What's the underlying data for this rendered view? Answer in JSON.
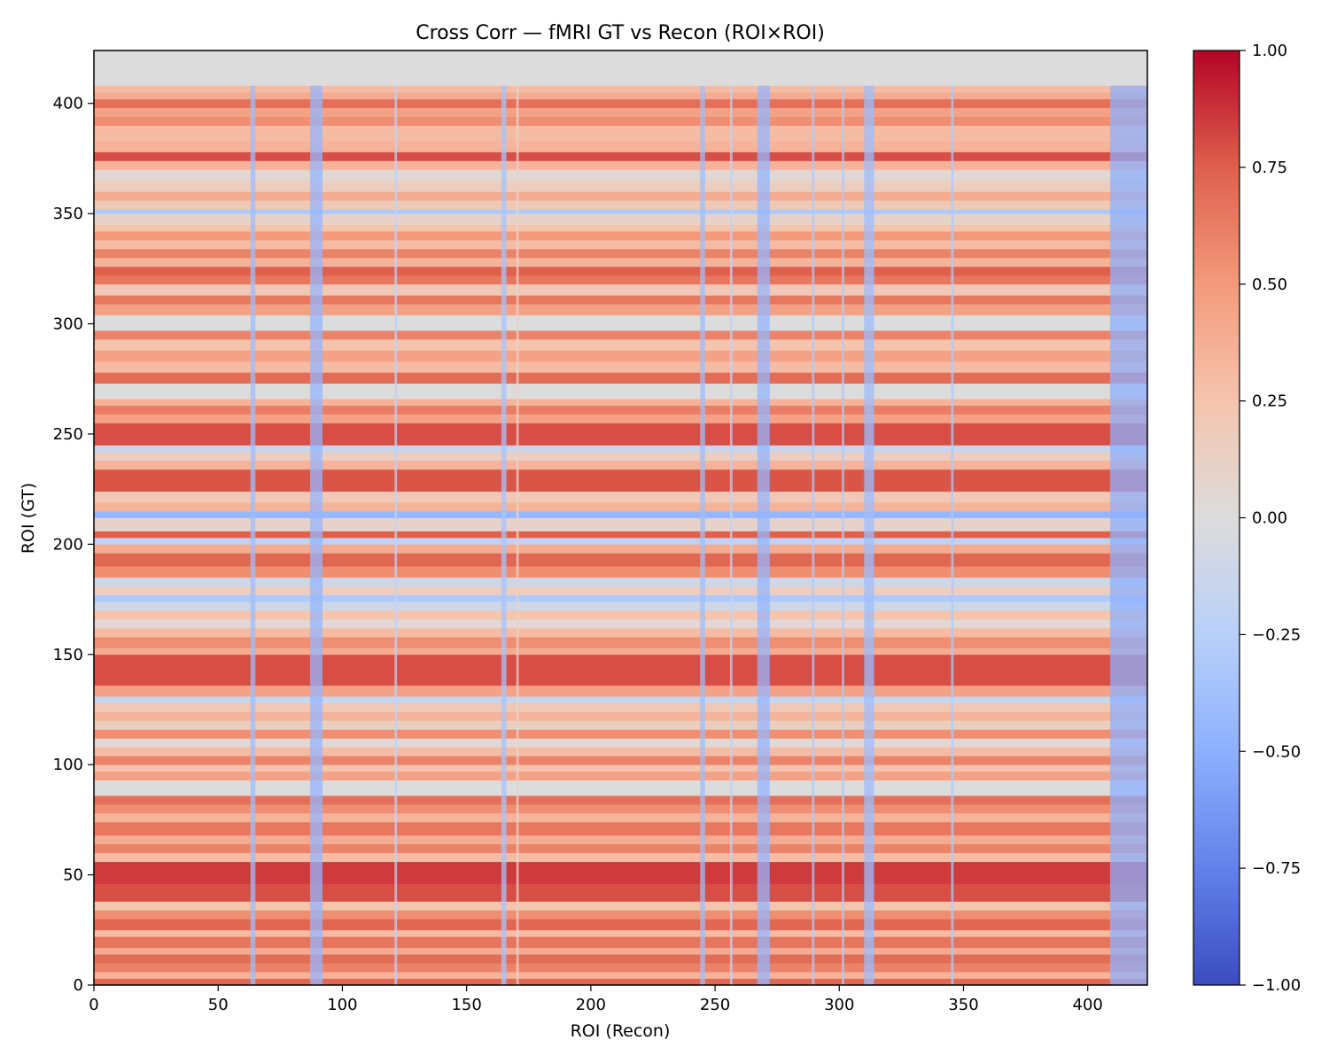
{
  "chart_data": {
    "type": "heatmap",
    "title": "Cross Corr — fMRI GT vs Recon (ROI×ROI)",
    "xlabel": "ROI (Recon)",
    "ylabel": "ROI (GT)",
    "xlim": [
      0,
      424
    ],
    "ylim": [
      0,
      424
    ],
    "xticks": [
      0,
      50,
      100,
      150,
      200,
      250,
      300,
      350,
      400
    ],
    "yticks": [
      0,
      50,
      100,
      150,
      200,
      250,
      300,
      350,
      400
    ],
    "colormap": "coolwarm",
    "color_range": [
      -1.0,
      1.0
    ],
    "colorbar_ticks": [
      "1.00",
      "0.75",
      "0.50",
      "0.25",
      "0.00",
      "−0.25",
      "−0.50",
      "−0.75",
      "−1.00"
    ],
    "colorbar_tick_values": [
      1.0,
      0.75,
      0.5,
      0.25,
      0.0,
      -0.25,
      -0.5,
      -0.75,
      -1.0
    ],
    "grid": false,
    "empty_rows_from": 408,
    "row_bands": [
      {
        "from": 0,
        "to": 3,
        "value": 0.72
      },
      {
        "from": 3,
        "to": 6,
        "value": 0.35
      },
      {
        "from": 6,
        "to": 10,
        "value": 0.6
      },
      {
        "from": 10,
        "to": 14,
        "value": 0.7
      },
      {
        "from": 14,
        "to": 17,
        "value": 0.4
      },
      {
        "from": 17,
        "to": 22,
        "value": 0.66
      },
      {
        "from": 22,
        "to": 25,
        "value": 0.3
      },
      {
        "from": 25,
        "to": 30,
        "value": 0.72
      },
      {
        "from": 30,
        "to": 34,
        "value": 0.55
      },
      {
        "from": 34,
        "to": 38,
        "value": 0.25
      },
      {
        "from": 38,
        "to": 46,
        "value": 0.8
      },
      {
        "from": 46,
        "to": 56,
        "value": 0.85
      },
      {
        "from": 56,
        "to": 60,
        "value": 0.3
      },
      {
        "from": 60,
        "to": 64,
        "value": 0.6
      },
      {
        "from": 64,
        "to": 68,
        "value": 0.4
      },
      {
        "from": 68,
        "to": 74,
        "value": 0.65
      },
      {
        "from": 74,
        "to": 78,
        "value": 0.35
      },
      {
        "from": 78,
        "to": 82,
        "value": 0.55
      },
      {
        "from": 82,
        "to": 86,
        "value": 0.68
      },
      {
        "from": 86,
        "to": 93,
        "value": 0.0
      },
      {
        "from": 93,
        "to": 97,
        "value": 0.45
      },
      {
        "from": 97,
        "to": 100,
        "value": 0.25
      },
      {
        "from": 100,
        "to": 104,
        "value": 0.6
      },
      {
        "from": 104,
        "to": 108,
        "value": 0.3
      },
      {
        "from": 108,
        "to": 112,
        "value": 0.05
      },
      {
        "from": 112,
        "to": 116,
        "value": 0.55
      },
      {
        "from": 116,
        "to": 120,
        "value": 0.15
      },
      {
        "from": 120,
        "to": 124,
        "value": 0.35
      },
      {
        "from": 124,
        "to": 128,
        "value": 0.2
      },
      {
        "from": 128,
        "to": 131,
        "value": -0.15
      },
      {
        "from": 131,
        "to": 136,
        "value": 0.45
      },
      {
        "from": 136,
        "to": 150,
        "value": 0.8
      },
      {
        "from": 150,
        "to": 153,
        "value": 0.4
      },
      {
        "from": 153,
        "to": 158,
        "value": 0.55
      },
      {
        "from": 158,
        "to": 162,
        "value": 0.3
      },
      {
        "from": 162,
        "to": 166,
        "value": 0.05
      },
      {
        "from": 166,
        "to": 170,
        "value": 0.25
      },
      {
        "from": 170,
        "to": 174,
        "value": -0.1
      },
      {
        "from": 174,
        "to": 177,
        "value": -0.3
      },
      {
        "from": 177,
        "to": 181,
        "value": 0.15
      },
      {
        "from": 181,
        "to": 185,
        "value": -0.1
      },
      {
        "from": 185,
        "to": 190,
        "value": 0.55
      },
      {
        "from": 190,
        "to": 196,
        "value": 0.72
      },
      {
        "from": 196,
        "to": 200,
        "value": 0.4
      },
      {
        "from": 200,
        "to": 203,
        "value": -0.2
      },
      {
        "from": 203,
        "to": 206,
        "value": 0.75
      },
      {
        "from": 206,
        "to": 212,
        "value": 0.1
      },
      {
        "from": 212,
        "to": 215,
        "value": -0.45
      },
      {
        "from": 215,
        "to": 219,
        "value": 0.35
      },
      {
        "from": 219,
        "to": 224,
        "value": 0.2
      },
      {
        "from": 224,
        "to": 234,
        "value": 0.78
      },
      {
        "from": 234,
        "to": 238,
        "value": 0.35
      },
      {
        "from": 238,
        "to": 242,
        "value": 0.15
      },
      {
        "from": 242,
        "to": 245,
        "value": -0.15
      },
      {
        "from": 245,
        "to": 255,
        "value": 0.8
      },
      {
        "from": 255,
        "to": 259,
        "value": 0.45
      },
      {
        "from": 259,
        "to": 263,
        "value": 0.62
      },
      {
        "from": 263,
        "to": 266,
        "value": 0.35
      },
      {
        "from": 266,
        "to": 273,
        "value": 0.0
      },
      {
        "from": 273,
        "to": 278,
        "value": 0.7
      },
      {
        "from": 278,
        "to": 283,
        "value": 0.3
      },
      {
        "from": 283,
        "to": 288,
        "value": 0.45
      },
      {
        "from": 288,
        "to": 293,
        "value": 0.25
      },
      {
        "from": 293,
        "to": 297,
        "value": 0.6
      },
      {
        "from": 297,
        "to": 304,
        "value": 0.0
      },
      {
        "from": 304,
        "to": 309,
        "value": 0.45
      },
      {
        "from": 309,
        "to": 313,
        "value": 0.65
      },
      {
        "from": 313,
        "to": 318,
        "value": 0.2
      },
      {
        "from": 318,
        "to": 322,
        "value": 0.65
      },
      {
        "from": 322,
        "to": 326,
        "value": 0.75
      },
      {
        "from": 326,
        "to": 330,
        "value": 0.35
      },
      {
        "from": 330,
        "to": 334,
        "value": 0.6
      },
      {
        "from": 334,
        "to": 338,
        "value": 0.3
      },
      {
        "from": 338,
        "to": 342,
        "value": 0.5
      },
      {
        "from": 342,
        "to": 345,
        "value": 0.25
      },
      {
        "from": 345,
        "to": 350,
        "value": 0.1
      },
      {
        "from": 350,
        "to": 352,
        "value": -0.3
      },
      {
        "from": 352,
        "to": 356,
        "value": 0.2
      },
      {
        "from": 356,
        "to": 360,
        "value": 0.4
      },
      {
        "from": 360,
        "to": 365,
        "value": 0.15
      },
      {
        "from": 365,
        "to": 370,
        "value": 0.05
      },
      {
        "from": 370,
        "to": 374,
        "value": 0.35
      },
      {
        "from": 374,
        "to": 378,
        "value": 0.8
      },
      {
        "from": 378,
        "to": 383,
        "value": 0.35
      },
      {
        "from": 383,
        "to": 390,
        "value": 0.3
      },
      {
        "from": 390,
        "to": 394,
        "value": 0.55
      },
      {
        "from": 394,
        "to": 398,
        "value": 0.45
      },
      {
        "from": 398,
        "to": 402,
        "value": 0.68
      },
      {
        "from": 402,
        "to": 405,
        "value": 0.4
      },
      {
        "from": 405,
        "to": 408,
        "value": 0.3
      }
    ],
    "cold_columns": [
      {
        "from": 63,
        "to": 65,
        "value": -0.4
      },
      {
        "from": 87,
        "to": 92,
        "value": -0.45
      },
      {
        "from": 121,
        "to": 122,
        "value": -0.2
      },
      {
        "from": 164,
        "to": 166,
        "value": -0.35
      },
      {
        "from": 170,
        "to": 171,
        "value": 0.1
      },
      {
        "from": 244,
        "to": 246,
        "value": -0.4
      },
      {
        "from": 256,
        "to": 257,
        "value": -0.2
      },
      {
        "from": 267,
        "to": 272,
        "value": -0.45
      },
      {
        "from": 289,
        "to": 290,
        "value": -0.3
      },
      {
        "from": 301,
        "to": 302,
        "value": -0.3
      },
      {
        "from": 310,
        "to": 314,
        "value": -0.4
      },
      {
        "from": 345,
        "to": 346,
        "value": -0.3
      },
      {
        "from": 409,
        "to": 424,
        "value": -0.5
      }
    ]
  }
}
